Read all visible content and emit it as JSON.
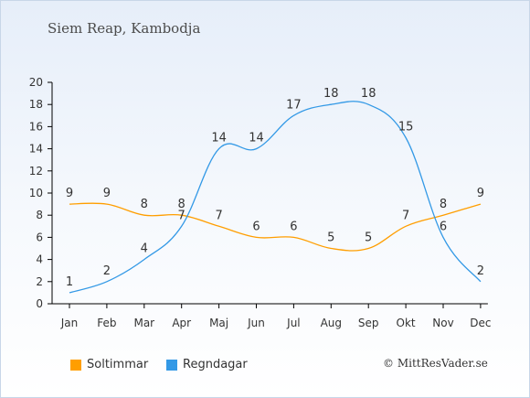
{
  "title": "Siem Reap, Kambodja",
  "credit": "© MittResVader.se",
  "colors": {
    "sun": "#ff9e00",
    "rain": "#3399e6"
  },
  "chart_data": {
    "type": "line",
    "categories": [
      "Jan",
      "Feb",
      "Mar",
      "Apr",
      "Maj",
      "Jun",
      "Jul",
      "Aug",
      "Sep",
      "Okt",
      "Nov",
      "Dec"
    ],
    "yticks": [
      0,
      2,
      4,
      6,
      8,
      10,
      12,
      14,
      16,
      18,
      20
    ],
    "ylim": [
      0,
      20
    ],
    "grid": false,
    "legend_position": "bottom-left",
    "series": [
      {
        "name": "Soltimmar",
        "color": "#ff9e00",
        "values": [
          9,
          9,
          8,
          8,
          7,
          6,
          6,
          5,
          5,
          7,
          8,
          9
        ]
      },
      {
        "name": "Regndagar",
        "color": "#3399e6",
        "values": [
          1,
          2,
          4,
          7,
          14,
          14,
          17,
          18,
          18,
          15,
          6,
          2
        ]
      }
    ]
  }
}
